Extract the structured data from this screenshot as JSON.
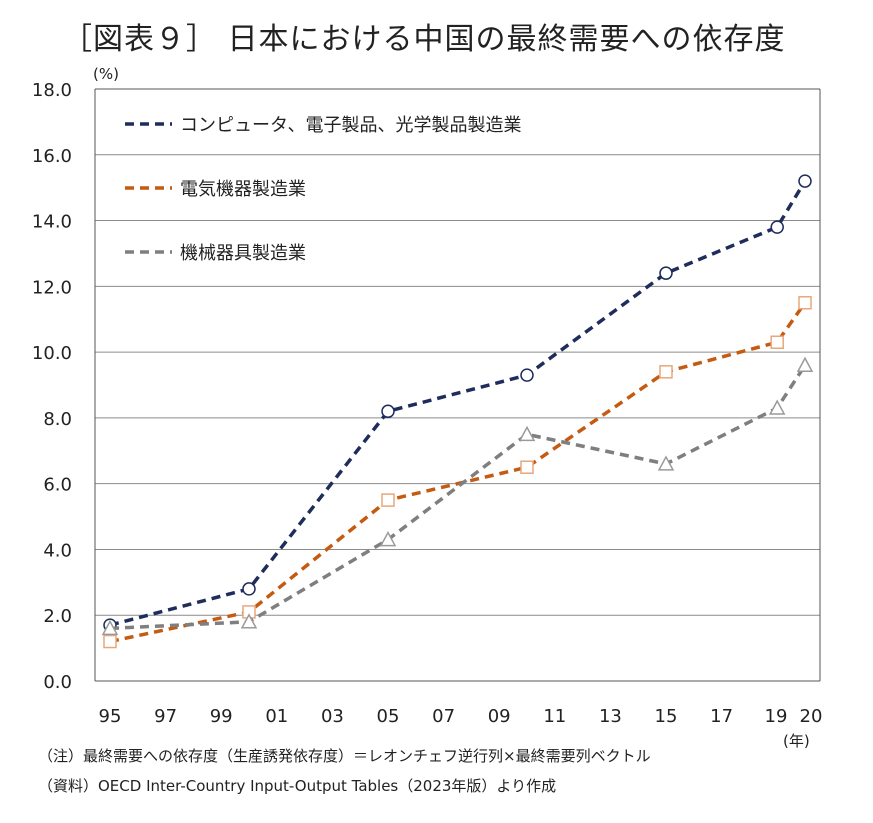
{
  "title": "［図表９］ 日本における中国の最終需要への依存度",
  "notes": {
    "note1": "（注）最終需要への依存度（生産誘発依存度）＝レオンチェフ逆行列×最終需要列ベクトル",
    "source": "（資料）OECD Inter-Country Input-Output Tables（2023年版）より作成"
  },
  "chart_data": {
    "type": "line",
    "title": "［図表９］ 日本における中国の最終需要への依存度",
    "ylabel": "(%)",
    "xlabel": "(年)",
    "ylim": [
      0,
      18
    ],
    "yticks": [
      "0.0",
      "2.0",
      "4.0",
      "6.0",
      "8.0",
      "10.0",
      "12.0",
      "14.0",
      "16.0",
      "18.0"
    ],
    "xticks": [
      "95",
      "97",
      "99",
      "01",
      "03",
      "05",
      "07",
      "09",
      "11",
      "13",
      "15",
      "17",
      "19",
      "20"
    ],
    "x": [
      1995,
      2000,
      2005,
      2010,
      2015,
      2019,
      2020
    ],
    "grid": true,
    "legend_position": "top-left",
    "series": [
      {
        "name": "コンピュータ、電子製品、光学製品製造業",
        "color": "#1f2d5c",
        "marker": "circle",
        "values": [
          1.7,
          2.8,
          8.2,
          9.3,
          12.4,
          13.8,
          15.2
        ]
      },
      {
        "name": "電気機器製造業",
        "color": "#c55a11",
        "marker": "square",
        "values": [
          1.2,
          2.1,
          5.5,
          6.5,
          9.4,
          10.3,
          11.5
        ]
      },
      {
        "name": "機械器具製造業",
        "color": "#7f7f7f",
        "marker": "triangle",
        "values": [
          1.6,
          1.8,
          4.3,
          7.5,
          6.6,
          8.3,
          9.6
        ]
      }
    ]
  }
}
